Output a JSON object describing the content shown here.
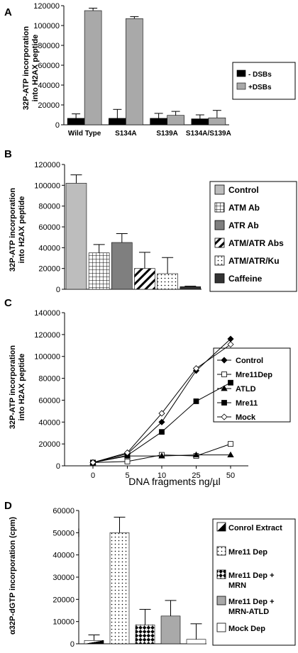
{
  "panels": [
    {
      "letter": "A",
      "ylabel": [
        "32P-ATP incorporation",
        "into H2AX peptide"
      ]
    },
    {
      "letter": "B",
      "ylabel": [
        "32P-ATP incorporation",
        "into H2AX peptide"
      ]
    },
    {
      "letter": "C",
      "ylabel": [
        "32P-ATP incorporation",
        "into H2AX peptide"
      ]
    },
    {
      "letter": "D",
      "ylabel": [
        "α32P-dGTP incorporation (cpm)"
      ]
    }
  ],
  "chart_data": [
    {
      "type": "bar",
      "categories": [
        "Wild Type",
        "S134A",
        "S139A",
        "S134A/S139A"
      ],
      "series": [
        {
          "name": "- DSBs",
          "values": [
            6500,
            6500,
            6500,
            6000
          ],
          "errors": [
            4500,
            9000,
            5000,
            4000
          ],
          "color": "#000000",
          "pattern": "solid"
        },
        {
          "name": "+DSBs",
          "values": [
            115000,
            107000,
            9500,
            7000
          ],
          "errors": [
            2500,
            2000,
            4000,
            7500
          ],
          "color": "#a9a9a9",
          "pattern": "solid"
        }
      ],
      "ylim": [
        0,
        120000
      ],
      "yticks": [
        0,
        20000,
        40000,
        60000,
        80000,
        100000,
        120000
      ],
      "legend_position": "right"
    },
    {
      "type": "bar",
      "categories": [
        "Control",
        "ATM Ab",
        "ATR Ab",
        "ATM/ATR Abs",
        "ATM/ATR/Ku",
        "Caffeine"
      ],
      "series": [
        {
          "name": "Values",
          "values": [
            102000,
            35000,
            45000,
            20000,
            15000,
            2500
          ],
          "errors": [
            8000,
            8000,
            8500,
            15500,
            15500,
            500
          ]
        }
      ],
      "legend": [
        "Control",
        "ATM Ab",
        "ATR Ab",
        "ATM/ATR Abs",
        "ATM/ATR/Ku",
        "Caffeine"
      ],
      "bar_styles": [
        {
          "fill": "#bdbdbd",
          "pattern": "solid"
        },
        {
          "fill": "#ffffff",
          "pattern": "grid"
        },
        {
          "fill": "#7f7f7f",
          "pattern": "solid"
        },
        {
          "fill": "#ffffff",
          "pattern": "diagonal"
        },
        {
          "fill": "#ffffff",
          "pattern": "dots"
        },
        {
          "fill": "#333333",
          "pattern": "solid"
        }
      ],
      "ylim": [
        0,
        120000
      ],
      "yticks": [
        0,
        20000,
        40000,
        60000,
        80000,
        100000,
        120000
      ],
      "legend_position": "right"
    },
    {
      "type": "line",
      "x": [
        0,
        5,
        10,
        25,
        50
      ],
      "xlabel": "DNA fragments ng/µl",
      "series": [
        {
          "name": "Control",
          "values": [
            3000,
            11000,
            40000,
            87000,
            116000
          ],
          "marker": "diamond-filled"
        },
        {
          "name": "Mre11Dep",
          "values": [
            3000,
            4000,
            10000,
            9000,
            20000
          ],
          "marker": "square-open"
        },
        {
          "name": "ATLD",
          "values": [
            3000,
            9000,
            9000,
            10000,
            10000
          ],
          "marker": "triangle-filled"
        },
        {
          "name": "Mre11",
          "values": [
            3000,
            9500,
            31000,
            59000,
            76000
          ],
          "marker": "square-filled"
        },
        {
          "name": "Mock",
          "values": [
            3000,
            12000,
            48000,
            89000,
            111000
          ],
          "marker": "diamond-open"
        }
      ],
      "ylim": [
        0,
        140000
      ],
      "yticks": [
        0,
        20000,
        40000,
        60000,
        80000,
        100000,
        120000,
        140000
      ],
      "legend_position": "right"
    },
    {
      "type": "bar",
      "categories": [
        "Conrol Extract",
        "Mre11 Dep",
        "Mre11 Dep + MRN",
        "Mre11 Dep + MRN-ATLD",
        "Mock Dep"
      ],
      "series": [
        {
          "name": "Values",
          "values": [
            1500,
            50000,
            8500,
            12500,
            2000
          ],
          "errors": [
            2500,
            7000,
            7000,
            7000,
            7000
          ]
        }
      ],
      "legend": [
        "Conrol Extract",
        "Mre11 Dep",
        "Mre11 Dep + MRN",
        "Mre11 Dep + MRN-ATLD",
        "Mock Dep"
      ],
      "bar_styles": [
        {
          "fill": "#ffffff",
          "pattern": "diagonal-half"
        },
        {
          "fill": "#ffffff",
          "pattern": "dots"
        },
        {
          "fill": "#ffffff",
          "pattern": "checker"
        },
        {
          "fill": "#a9a9a9",
          "pattern": "solid"
        },
        {
          "fill": "#ffffff",
          "pattern": "solid"
        }
      ],
      "ylim": [
        0,
        60000
      ],
      "yticks": [
        0,
        10000,
        20000,
        30000,
        40000,
        50000,
        60000
      ],
      "legend_position": "right"
    }
  ]
}
